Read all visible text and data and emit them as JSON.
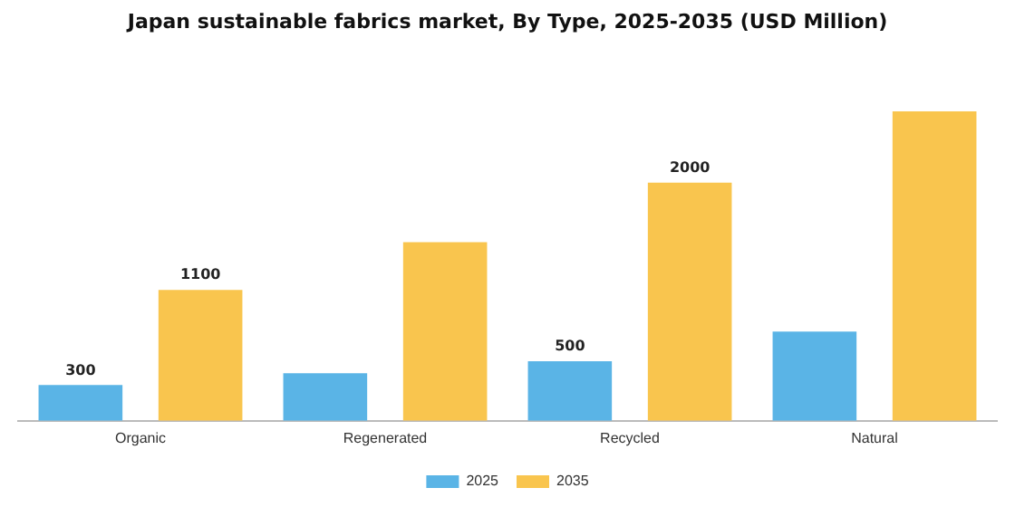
{
  "chart_data": {
    "type": "bar",
    "title": "Japan sustainable fabrics market, By Type, 2025-2035 (USD Million)",
    "categories": [
      "Organic",
      "Regenerated",
      "Recycled",
      "Natural"
    ],
    "series": [
      {
        "name": "2025",
        "color": "#5ab4e6",
        "values": [
          300,
          400,
          500,
          750
        ],
        "value_labels": [
          "300",
          null,
          "500",
          null
        ]
      },
      {
        "name": "2035",
        "color": "#f9c54e",
        "values": [
          1100,
          1500,
          2000,
          2600
        ],
        "value_labels": [
          "1100",
          null,
          "2000",
          null
        ]
      }
    ],
    "legend": "bottom",
    "grid": false
  }
}
